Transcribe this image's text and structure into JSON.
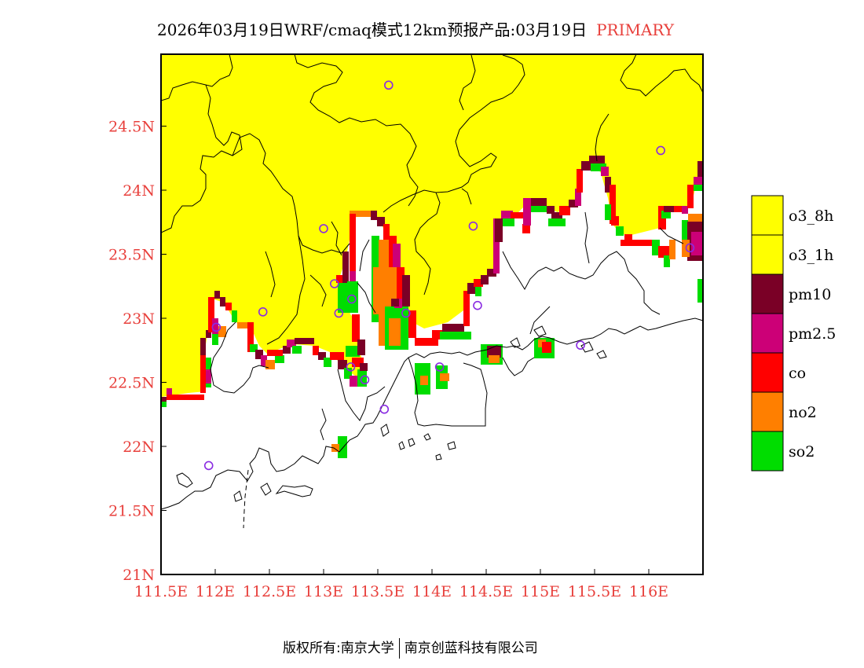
{
  "title": {
    "main": "2026年03月19日WRF/cmaq模式12km预报产品:03月19日",
    "tag": "PRIMARY"
  },
  "map": {
    "lon_range": [
      111.5,
      116.5
    ],
    "lat_range": [
      21.0,
      25.0
    ],
    "lon_ticks": [
      "111.5E",
      "112E",
      "112.5E",
      "113E",
      "113.5E",
      "114E",
      "114.5E",
      "115E",
      "115.5E",
      "116E"
    ],
    "lon_values": [
      111.5,
      112.0,
      112.5,
      113.0,
      113.5,
      114.0,
      114.5,
      115.0,
      115.5,
      116.0
    ],
    "lat_ticks": [
      "21N",
      "21.5N",
      "22N",
      "22.5N",
      "23N",
      "23.5N",
      "24N",
      "24.5N"
    ],
    "lat_values": [
      21.0,
      21.5,
      22.0,
      22.5,
      23.0,
      23.5,
      24.0,
      24.5
    ],
    "cities": [
      {
        "lon": 113.6,
        "lat": 24.82
      },
      {
        "lon": 113.0,
        "lat": 23.7
      },
      {
        "lon": 112.44,
        "lat": 23.05
      },
      {
        "lon": 112.01,
        "lat": 22.93
      },
      {
        "lon": 113.1,
        "lat": 23.27
      },
      {
        "lon": 113.14,
        "lat": 23.04
      },
      {
        "lon": 113.26,
        "lat": 23.15
      },
      {
        "lon": 113.25,
        "lat": 22.62
      },
      {
        "lon": 113.38,
        "lat": 22.52
      },
      {
        "lon": 113.56,
        "lat": 22.29
      },
      {
        "lon": 113.76,
        "lat": 23.04
      },
      {
        "lon": 114.07,
        "lat": 22.62
      },
      {
        "lon": 114.42,
        "lat": 23.1
      },
      {
        "lon": 114.38,
        "lat": 23.72
      },
      {
        "lon": 115.37,
        "lat": 22.79
      },
      {
        "lon": 116.11,
        "lat": 24.31
      },
      {
        "lon": 116.38,
        "lat": 23.55
      },
      {
        "lon": 111.94,
        "lat": 21.85
      }
    ]
  },
  "legend": {
    "items": [
      {
        "label": "o3_8h",
        "color": "#ffff00"
      },
      {
        "label": "o3_1h",
        "color": "#ffff00"
      },
      {
        "label": "pm10",
        "color": "#7a0026"
      },
      {
        "label": "pm2.5",
        "color": "#cc0077"
      },
      {
        "label": "co",
        "color": "#ff0000"
      },
      {
        "label": "no2",
        "color": "#ff7f00"
      },
      {
        "label": "so2",
        "color": "#00dd00"
      }
    ]
  },
  "footer": {
    "left": "版权所有:南京大学",
    "right": "南京创蓝科技有限公司"
  }
}
